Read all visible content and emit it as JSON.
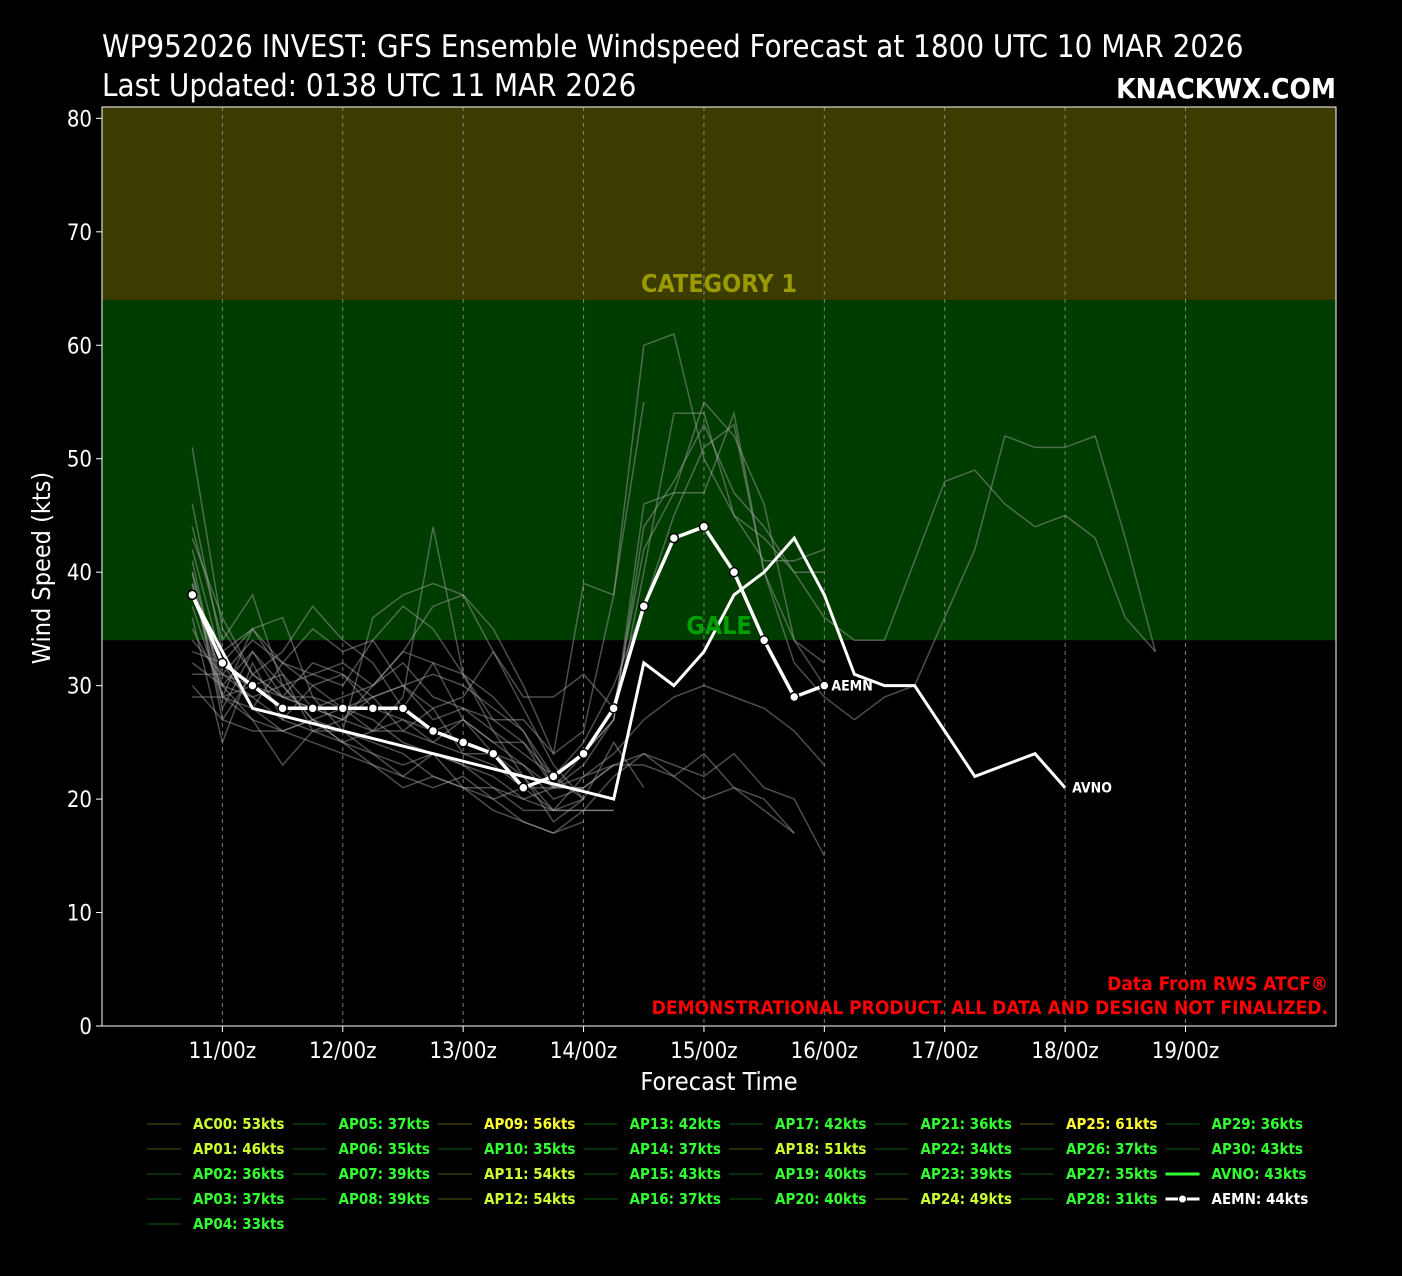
{
  "header": {
    "title_line1": "WP952026 INVEST: GFS Ensemble Windspeed Forecast at 1800 UTC 10 MAR 2026",
    "title_line2": "Last Updated: 0138 UTC 11 MAR 2026",
    "brand": "KNACKWX.COM"
  },
  "credits": {
    "line1": "Data From RWS ATCF®",
    "line2": "DEMONSTRATIONAL PRODUCT. ALL DATA AND DESIGN NOT FINALIZED."
  },
  "colors": {
    "background": "#000000",
    "gale_band": "#003c00",
    "cat1_band": "#3d3c00",
    "gale_label": "#00a000",
    "cat1_label": "#9a9a00",
    "member_line": "#aaaaaa",
    "main_line": "#ffffff",
    "legend_green": "#33ff33",
    "legend_yellow": "#ccff33",
    "legend_bright_yellow": "#ffff33"
  },
  "chart_data": {
    "type": "line",
    "xlabel": "Forecast Time",
    "ylabel": "Wind Speed (kts)",
    "x_unit": "forecast hour from 00Z 11 MAR 2026",
    "xlim": [
      -24,
      222
    ],
    "ylim": [
      0,
      81
    ],
    "yticks": [
      0,
      10,
      20,
      30,
      40,
      50,
      60,
      70,
      80
    ],
    "xticks": [
      {
        "x": 0,
        "label": "11/00z"
      },
      {
        "x": 24,
        "label": "12/00z"
      },
      {
        "x": 48,
        "label": "13/00z"
      },
      {
        "x": 72,
        "label": "14/00z"
      },
      {
        "x": 96,
        "label": "15/00z"
      },
      {
        "x": 120,
        "label": "16/00z"
      },
      {
        "x": 144,
        "label": "17/00z"
      },
      {
        "x": 168,
        "label": "18/00z"
      },
      {
        "x": 192,
        "label": "19/00z"
      }
    ],
    "grid": "vertical dashed",
    "bands": [
      {
        "name": "GALE",
        "from": 34,
        "to": 64
      },
      {
        "name": "CATEGORY 1",
        "from": 64,
        "to": 81
      }
    ],
    "members": [
      {
        "name": "AP01",
        "x": [
          -6,
          0,
          6,
          12,
          18,
          24,
          30,
          36,
          42,
          48,
          54,
          60,
          66,
          72,
          78,
          84,
          90,
          96,
          102,
          108,
          114,
          120
        ],
        "y": [
          51,
          35,
          31,
          29,
          28,
          27,
          26,
          26,
          25,
          24,
          24,
          23,
          21,
          23,
          27,
          40,
          54,
          54,
          45,
          41,
          41,
          42
        ]
      },
      {
        "name": "AP02",
        "x": [
          -6,
          0,
          6,
          12,
          18,
          24,
          30,
          36,
          42,
          48,
          54,
          60,
          66,
          72,
          78,
          84,
          90,
          96,
          102,
          108,
          114,
          120
        ],
        "y": [
          46,
          33,
          35,
          31,
          28,
          27,
          30,
          33,
          37,
          38,
          35,
          30,
          24,
          26,
          38,
          60,
          61,
          50,
          45,
          43,
          40,
          40
        ]
      },
      {
        "name": "AP03",
        "x": [
          -6,
          0,
          6,
          12,
          18,
          24,
          30,
          36,
          42,
          48,
          54,
          60,
          66,
          72
        ],
        "y": [
          44,
          34,
          38,
          30,
          27,
          28,
          29,
          30,
          28,
          29,
          33,
          28,
          23,
          20
        ]
      },
      {
        "name": "AP04",
        "x": [
          -6,
          0,
          6,
          12,
          18,
          24,
          30,
          36,
          42,
          48,
          54,
          60,
          66,
          72,
          78
        ],
        "y": [
          43,
          36,
          31,
          33,
          37,
          34,
          32,
          28,
          32,
          27,
          24,
          22,
          19,
          19,
          19
        ]
      },
      {
        "name": "AP05",
        "x": [
          -6,
          0,
          6,
          12,
          18,
          24,
          30,
          36,
          42,
          48,
          54,
          60,
          66,
          72,
          78,
          84,
          90,
          96,
          102,
          108,
          114,
          120
        ],
        "y": [
          42,
          32,
          35,
          36,
          29,
          26,
          36,
          38,
          39,
          38,
          33,
          29,
          29,
          31,
          28,
          42,
          47,
          55,
          52,
          46,
          34,
          32
        ]
      },
      {
        "name": "AP06",
        "x": [
          -6,
          0,
          6,
          12,
          18,
          24,
          30,
          36,
          42,
          48,
          54,
          60,
          66,
          72,
          78,
          84,
          90,
          96,
          102,
          108,
          114,
          120,
          126,
          132,
          138,
          144,
          150,
          156,
          162,
          168,
          174,
          180,
          186
        ],
        "y": [
          40,
          30,
          29,
          30,
          31,
          32,
          30,
          32,
          29,
          28,
          27,
          25,
          22,
          25,
          30,
          37,
          45,
          51,
          53,
          40,
          32,
          29,
          27,
          29,
          30,
          36,
          42,
          52,
          51,
          51,
          52,
          43,
          33
        ]
      },
      {
        "name": "AP07",
        "x": [
          -6,
          0,
          6,
          12,
          18,
          24,
          30,
          36,
          42,
          48,
          54,
          60,
          66,
          72,
          78,
          84,
          90,
          96,
          102,
          108,
          114,
          120,
          126,
          132,
          138,
          144,
          150,
          156,
          162,
          168,
          174,
          180,
          186
        ],
        "y": [
          38,
          31,
          34,
          32,
          35,
          33,
          34,
          30,
          31,
          30,
          28,
          26,
          22,
          24,
          27,
          44,
          48,
          53,
          47,
          44,
          40,
          36,
          34,
          34,
          41,
          48,
          49,
          46,
          44,
          45,
          43,
          36,
          33
        ]
      },
      {
        "name": "AP08",
        "x": [
          -6,
          0,
          6,
          12,
          18,
          24,
          30,
          36,
          42,
          48,
          54,
          60,
          66,
          72,
          78,
          84,
          90,
          96,
          102,
          108,
          114,
          120
        ],
        "y": [
          37,
          29,
          28,
          32,
          31,
          30,
          34,
          37,
          35,
          31,
          29,
          26,
          21,
          24,
          27,
          46,
          47,
          47,
          54,
          40,
          34,
          30
        ]
      },
      {
        "name": "AP09",
        "x": [
          -6,
          0,
          6,
          12,
          18,
          24,
          30,
          36,
          42,
          48,
          54,
          60,
          66,
          72
        ],
        "y": [
          36,
          25,
          32,
          27,
          30,
          28,
          26,
          29,
          44,
          31,
          26,
          22,
          18,
          20
        ]
      },
      {
        "name": "AP10",
        "x": [
          -6,
          0,
          6,
          12,
          18,
          24,
          30,
          36,
          42,
          48,
          54,
          60,
          66,
          72,
          78,
          84
        ],
        "y": [
          35,
          30,
          33,
          29,
          28,
          29,
          30,
          33,
          32,
          31,
          27,
          27,
          24,
          39,
          38,
          55
        ]
      },
      {
        "name": "AP11",
        "x": [
          -6,
          0,
          6,
          12,
          18,
          24,
          30,
          36,
          42,
          48,
          54,
          60,
          66,
          72,
          78,
          84,
          90,
          96,
          102,
          108,
          114,
          120
        ],
        "y": [
          34,
          31,
          29,
          27,
          26,
          25,
          24,
          22,
          21,
          22,
          20,
          21,
          21,
          22,
          24,
          27,
          29,
          30,
          29,
          28,
          26,
          23
        ]
      },
      {
        "name": "AP12",
        "x": [
          -6,
          0,
          6,
          12,
          18,
          24,
          30,
          36,
          42,
          48,
          54,
          60,
          66,
          72,
          78,
          84,
          90,
          96,
          102,
          108,
          114,
          120
        ],
        "y": [
          33,
          32,
          28,
          26,
          27,
          26,
          24,
          23,
          24,
          23,
          21,
          20,
          19,
          19,
          22,
          24,
          23,
          22,
          24,
          21,
          20,
          15
        ]
      },
      {
        "name": "AP13",
        "x": [
          -6,
          0,
          6,
          12,
          18,
          24,
          30,
          36,
          42,
          48,
          54,
          60,
          66,
          72,
          78,
          84
        ],
        "y": [
          32,
          30,
          27,
          26,
          27,
          25,
          23,
          21,
          22,
          21,
          21,
          19,
          19,
          20,
          25,
          21
        ]
      },
      {
        "name": "AP14",
        "x": [
          -6,
          0,
          6,
          12,
          18,
          24,
          30,
          36,
          42,
          48,
          54,
          60,
          66,
          72,
          78,
          84,
          90,
          96,
          102,
          108,
          114
        ],
        "y": [
          31,
          31,
          30,
          29,
          29,
          28,
          27,
          25,
          24,
          23,
          22,
          20,
          21,
          21,
          23,
          24,
          22,
          20,
          21,
          19,
          17
        ]
      },
      {
        "name": "AP15",
        "x": [
          -6,
          0,
          6,
          12,
          18,
          24,
          30,
          36,
          42,
          48,
          54,
          60,
          66,
          72,
          78
        ],
        "y": [
          30,
          27,
          26,
          26,
          25,
          24,
          23,
          22,
          24,
          21,
          19,
          18,
          17,
          19,
          19
        ]
      },
      {
        "name": "AP16",
        "x": [
          -6,
          0,
          6,
          12,
          18,
          24,
          30,
          36,
          42,
          48,
          54,
          60,
          66,
          72
        ],
        "y": [
          29,
          29,
          27,
          23,
          26,
          26,
          25,
          24,
          22,
          21,
          20,
          18,
          17,
          18
        ]
      },
      {
        "name": "AP17",
        "x": [
          -6,
          0,
          6,
          12,
          18,
          24,
          30,
          36,
          42,
          48,
          54,
          60,
          66,
          72,
          78
        ],
        "y": [
          39,
          29,
          30,
          31,
          26,
          27,
          29,
          26,
          28,
          24,
          23,
          21,
          19,
          22,
          23
        ]
      },
      {
        "name": "AP18",
        "x": [
          -6,
          0,
          6,
          12,
          18,
          24,
          30,
          36,
          42,
          48,
          54,
          60,
          66,
          72,
          78,
          84,
          90,
          96,
          102,
          108,
          114
        ],
        "y": [
          40,
          27,
          31,
          29,
          32,
          31,
          28,
          27,
          26,
          27,
          25,
          23,
          20,
          21,
          23,
          23,
          22,
          24,
          21,
          20,
          17
        ]
      },
      {
        "name": "AP19",
        "x": [
          -6,
          0,
          6,
          12,
          18,
          24,
          30,
          36,
          42,
          48,
          54,
          60,
          66,
          72
        ],
        "y": [
          41,
          29,
          35,
          32,
          30,
          31,
          29,
          30,
          27,
          28,
          26,
          24,
          22,
          20
        ]
      },
      {
        "name": "AP20",
        "x": [
          -6,
          0,
          6,
          12,
          18,
          24,
          30,
          36,
          42,
          48,
          54,
          60,
          66,
          72
        ],
        "y": [
          39,
          28,
          33,
          30,
          27,
          25,
          26,
          27,
          25,
          27,
          25,
          25,
          21,
          21
        ]
      }
    ],
    "series": [
      {
        "name": "AVNO",
        "x": [
          -6,
          6,
          78,
          84,
          90,
          96,
          102,
          108,
          114,
          120,
          126,
          132,
          138,
          144,
          150,
          156,
          162,
          168
        ],
        "y": [
          38,
          28,
          20,
          32,
          30,
          33,
          38,
          40,
          43,
          38,
          31,
          30,
          30,
          26,
          22,
          23,
          24,
          21
        ]
      },
      {
        "name": "AEMN",
        "x": [
          -6,
          0,
          6,
          12,
          18,
          24,
          30,
          36,
          42,
          48,
          54,
          60,
          66,
          72,
          78,
          84,
          90,
          96,
          102,
          108,
          114,
          120
        ],
        "y": [
          38,
          32,
          30,
          28,
          28,
          28,
          28,
          28,
          26,
          25,
          24,
          21,
          22,
          24,
          28,
          37,
          43,
          44,
          40,
          34,
          29,
          30
        ]
      }
    ]
  },
  "end_labels": [
    {
      "series": "AEMN",
      "text": "AEMN"
    },
    {
      "series": "AVNO",
      "text": "AVNO"
    }
  ],
  "legend": {
    "columns": [
      [
        {
          "text": "AC00: 53kts",
          "tone": "yellow"
        },
        {
          "text": "AP01: 46kts",
          "tone": "yellow"
        },
        {
          "text": "AP02: 36kts",
          "tone": "green"
        },
        {
          "text": "AP03: 37kts",
          "tone": "green"
        },
        {
          "text": "AP04: 33kts",
          "tone": "green"
        }
      ],
      [
        {
          "text": "AP05: 37kts",
          "tone": "green"
        },
        {
          "text": "AP06: 35kts",
          "tone": "green"
        },
        {
          "text": "AP07: 39kts",
          "tone": "green"
        },
        {
          "text": "AP08: 39kts",
          "tone": "green"
        }
      ],
      [
        {
          "text": "AP09: 56kts",
          "tone": "bright"
        },
        {
          "text": "AP10: 35kts",
          "tone": "green"
        },
        {
          "text": "AP11: 54kts",
          "tone": "yellow"
        },
        {
          "text": "AP12: 54kts",
          "tone": "yellow"
        }
      ],
      [
        {
          "text": "AP13: 42kts",
          "tone": "green"
        },
        {
          "text": "AP14: 37kts",
          "tone": "green"
        },
        {
          "text": "AP15: 43kts",
          "tone": "green"
        },
        {
          "text": "AP16: 37kts",
          "tone": "green"
        }
      ],
      [
        {
          "text": "AP17: 42kts",
          "tone": "green"
        },
        {
          "text": "AP18: 51kts",
          "tone": "yellow"
        },
        {
          "text": "AP19: 40kts",
          "tone": "green"
        },
        {
          "text": "AP20: 40kts",
          "tone": "green"
        }
      ],
      [
        {
          "text": "AP21: 36kts",
          "tone": "green"
        },
        {
          "text": "AP22: 34kts",
          "tone": "green"
        },
        {
          "text": "AP23: 39kts",
          "tone": "green"
        },
        {
          "text": "AP24: 49kts",
          "tone": "yellow"
        }
      ],
      [
        {
          "text": "AP25: 61kts",
          "tone": "bright"
        },
        {
          "text": "AP26: 37kts",
          "tone": "green"
        },
        {
          "text": "AP27: 35kts",
          "tone": "green"
        },
        {
          "text": "AP28: 31kts",
          "tone": "green"
        }
      ],
      [
        {
          "text": "AP29: 36kts",
          "tone": "green"
        },
        {
          "text": "AP30: 43kts",
          "tone": "green"
        },
        {
          "text": "AVNO: 43kts",
          "tone": "green",
          "marker": "avno"
        },
        {
          "text": "AEMN: 44kts",
          "tone": "white",
          "marker": "aemn"
        }
      ]
    ]
  }
}
